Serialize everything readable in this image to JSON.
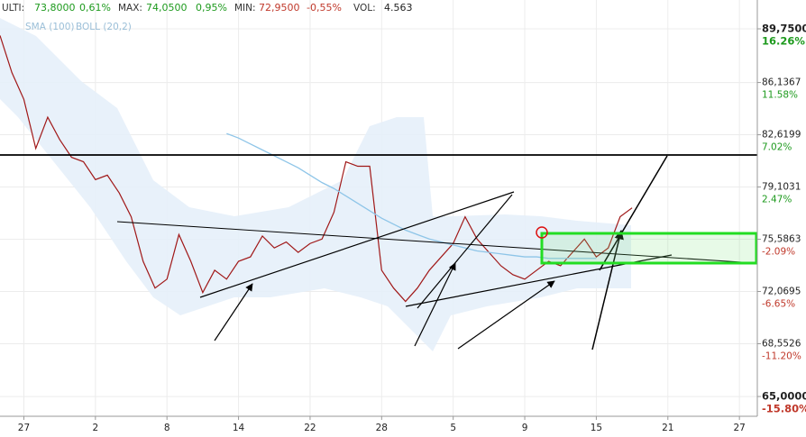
{
  "header": {
    "items": [
      {
        "label": "ULTI:",
        "value": "73,8000",
        "change": "0,61%"
      },
      {
        "label": "MAX:",
        "value": "74,0500",
        "change": "0,95%"
      },
      {
        "label": "MIN:",
        "value": "72,9500",
        "change": "-0,55%"
      },
      {
        "label": "VOL:",
        "value": "4.563"
      }
    ]
  },
  "chart_data": {
    "type": "line",
    "indicators": [
      "SMA (100)",
      "BOLL (20,2)"
    ],
    "x": [
      0,
      1,
      2,
      3,
      4,
      5,
      6,
      7,
      8,
      9,
      10,
      11,
      12,
      13,
      14,
      15,
      16,
      17,
      18,
      19,
      20,
      21,
      22,
      23,
      24,
      25,
      26,
      27,
      28,
      29,
      30,
      31,
      32,
      33,
      34,
      35,
      36,
      37,
      38,
      39,
      40,
      41,
      42,
      43,
      44,
      45,
      46,
      47,
      48,
      49,
      50,
      51,
      52,
      53
    ],
    "series": [
      {
        "name": "Price",
        "color": "#a01818",
        "values": [
          89.3,
          86.8,
          85.0,
          81.7,
          83.8,
          82.3,
          81.1,
          80.8,
          79.6,
          79.9,
          78.7,
          77.1,
          74.1,
          72.3,
          72.9,
          75.9,
          74.1,
          72.0,
          73.5,
          72.9,
          74.1,
          74.4,
          75.8,
          75.0,
          75.4,
          74.7,
          75.3,
          75.6,
          77.4,
          80.8,
          80.5,
          80.5,
          73.5,
          72.3,
          71.4,
          72.3,
          73.5,
          74.4,
          75.3,
          77.1,
          75.6,
          74.7,
          73.8,
          73.2,
          72.9,
          73.5,
          74.1,
          73.8,
          74.7,
          75.6,
          74.4,
          75.0,
          77.1,
          77.7
        ]
      },
      {
        "name": "SMA",
        "color": "#8ec5e8",
        "values": [
          null,
          null,
          null,
          null,
          null,
          null,
          null,
          null,
          null,
          null,
          null,
          null,
          null,
          null,
          null,
          null,
          null,
          null,
          null,
          82.7,
          82.4,
          82.0,
          81.6,
          81.2,
          80.8,
          80.4,
          79.9,
          79.4,
          79.0,
          78.5,
          78.0,
          77.5,
          77.0,
          76.6,
          76.2,
          75.9,
          75.6,
          75.4,
          75.2,
          75.0,
          74.8,
          74.7,
          74.6,
          74.5,
          74.4,
          74.4,
          74.3,
          74.3,
          74.3,
          74.3,
          74.3,
          null,
          null,
          null
        ]
      }
    ],
    "xlim": [
      0,
      63.5
    ],
    "xticks": [
      {
        "value": 2,
        "label": "27"
      },
      {
        "value": 8,
        "label": "2"
      },
      {
        "value": 14,
        "label": "8"
      },
      {
        "value": 20,
        "label": "14"
      },
      {
        "value": 26,
        "label": "22"
      },
      {
        "value": 32,
        "label": "28"
      },
      {
        "value": 38,
        "label": "5"
      },
      {
        "value": 44,
        "label": "9"
      },
      {
        "value": 50,
        "label": "15"
      },
      {
        "value": 56,
        "label": "21"
      },
      {
        "value": 62,
        "label": "27"
      }
    ],
    "ylim": [
      63.67,
      91.69
    ],
    "yticks": [
      {
        "value": 89.75,
        "label": "89,7500"
      },
      {
        "value": 86.1367,
        "label": "86,1367"
      },
      {
        "value": 82.6199,
        "label": "82,6199"
      },
      {
        "value": 79.1031,
        "label": "79,1031"
      },
      {
        "value": 75.5863,
        "label": "75,5863"
      },
      {
        "value": 72.0695,
        "label": "72,0695"
      },
      {
        "value": 68.5526,
        "label": "68,5526"
      },
      {
        "value": 65.0,
        "label": "65,0000"
      }
    ],
    "y2lim": [
      -17.52,
      18.77
    ],
    "y2ticks": [
      {
        "value": 16.26,
        "label": "16.26%"
      },
      {
        "value": 11.58,
        "label": "11.58%"
      },
      {
        "value": 7.02,
        "label": "7.02%"
      },
      {
        "value": 2.47,
        "label": "2.47%"
      },
      {
        "value": -2.09,
        "label": "-2.09%"
      },
      {
        "value": -6.65,
        "label": "-6.65%"
      },
      {
        "value": -11.2,
        "label": "-11.20%"
      },
      {
        "value": -15.8,
        "label": "-15.80%"
      }
    ],
    "grid": true
  }
}
